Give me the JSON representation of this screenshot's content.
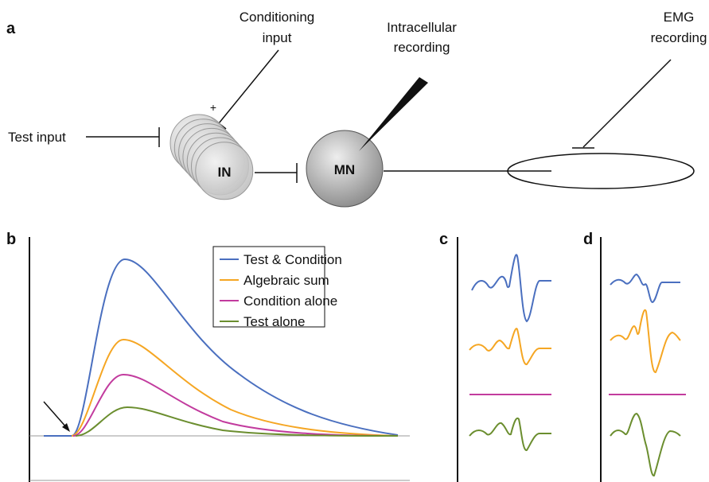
{
  "panel_a": {
    "label": "a",
    "conditioning_input": [
      "Conditioning",
      "input"
    ],
    "plus": "+",
    "intracellular_recording": [
      "Intracellular",
      "recording"
    ],
    "emg_recording": [
      "EMG",
      "recording"
    ],
    "test_input": "Test input",
    "interneuron": "IN",
    "motoneuron": "MN"
  },
  "panel_b": {
    "label": "b",
    "legend": [
      {
        "name": "Test & Condition",
        "color": "#4a6fbf"
      },
      {
        "name": "Algebraic sum",
        "color": "#f5a623"
      },
      {
        "name": "Condition alone",
        "color": "#c23b9e"
      },
      {
        "name": "Test alone",
        "color": "#6b8e2f"
      }
    ]
  },
  "panel_c": {
    "label": "c"
  },
  "panel_d": {
    "label": "d"
  }
}
